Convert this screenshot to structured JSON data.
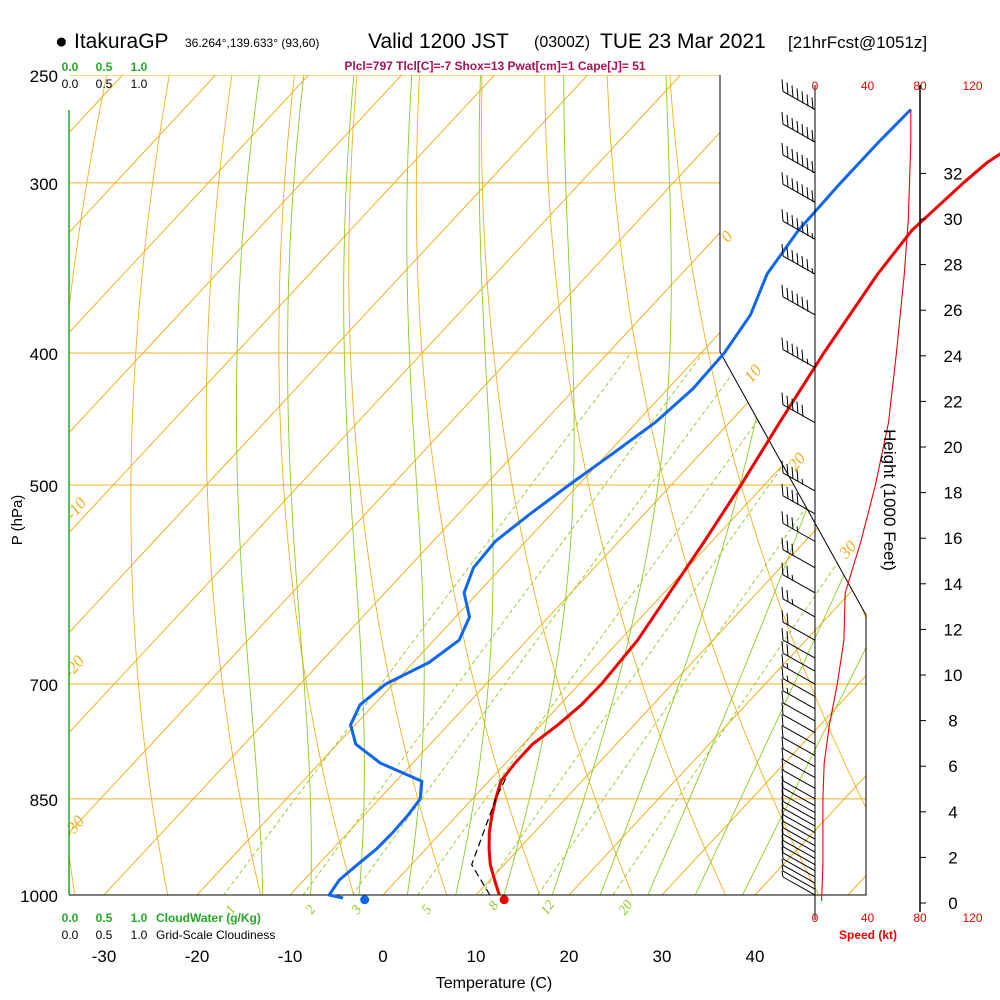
{
  "header": {
    "station": "ItakuraGP",
    "coords": "36.264°,139.633° (93,60)",
    "valid": "Valid 1200 JST",
    "utc": "(0300Z)",
    "date": "TUE 23 Mar 2021",
    "fcst": "[21hrFcst@1051z]"
  },
  "indices": "Plcl=797 Tlcl[C]=-7 Shox=13 Pwat[cm]=1 Cape[J]= 51",
  "chart_data": {
    "type": "line",
    "subtype": "skew-T log-P sounding",
    "xlabel": "Temperature (C)",
    "ylabel": "P (hPa)",
    "y2label": "Height (1000 Feet)",
    "x_ticks": [
      -30,
      -20,
      -10,
      0,
      10,
      20,
      30,
      40
    ],
    "p_ticks": [
      250,
      300,
      400,
      500,
      700,
      850,
      1000
    ],
    "height_ticks": [
      0,
      2,
      4,
      6,
      8,
      10,
      12,
      14,
      16,
      18,
      20,
      22,
      24,
      26,
      28,
      30,
      32
    ],
    "isotherm_labels": [
      -30,
      -20,
      -10,
      0,
      10,
      20,
      30
    ],
    "mixing_ratio_labels": [
      "1",
      "2",
      "3",
      "5",
      "8",
      "12",
      "20"
    ],
    "cloudwater_axis": {
      "label": "CloudWater (g/Kg)",
      "ticks": [
        "0.0",
        "0.5",
        "1.0"
      ],
      "color": "#22aa22"
    },
    "cloudiness_axis": {
      "label": "Grid-Scale Cloudiness",
      "ticks": [
        "0.0",
        "0.5",
        "1.0"
      ]
    },
    "speed_axis": {
      "label": "Speed (kt)",
      "ticks": [
        "0",
        "40",
        "80",
        "120"
      ],
      "color": "#ee0000"
    },
    "temperature": {
      "color": "#ee0000",
      "points": [
        [
          12.5,
          1000
        ],
        [
          10.5,
          975
        ],
        [
          8.5,
          950
        ],
        [
          6.8,
          925
        ],
        [
          5.2,
          900
        ],
        [
          3.8,
          875
        ],
        [
          2.5,
          850
        ],
        [
          1.3,
          825
        ],
        [
          1.0,
          800
        ],
        [
          1.0,
          775
        ],
        [
          1.8,
          750
        ],
        [
          2.3,
          725
        ],
        [
          2.4,
          700
        ],
        [
          1.9,
          650
        ],
        [
          0.6,
          600
        ],
        [
          -0.8,
          550
        ],
        [
          -2.5,
          500
        ],
        [
          -4.6,
          450
        ],
        [
          -6.8,
          400
        ],
        [
          -8.9,
          350
        ],
        [
          -9.6,
          325
        ],
        [
          -8.8,
          300
        ],
        [
          -8.3,
          290
        ],
        [
          -7.0,
          280
        ],
        [
          -6.0,
          270
        ],
        [
          -5.5,
          265
        ]
      ]
    },
    "dewpoint": {
      "color": "#1166ee",
      "points": [
        [
          -4.0,
          1005
        ],
        [
          -5.8,
          1000
        ],
        [
          -6.2,
          975
        ],
        [
          -5.8,
          950
        ],
        [
          -5.3,
          925
        ],
        [
          -5.2,
          900
        ],
        [
          -5.3,
          875
        ],
        [
          -5.6,
          850
        ],
        [
          -7.2,
          825
        ],
        [
          -13.5,
          800
        ],
        [
          -18.0,
          775
        ],
        [
          -20.5,
          750
        ],
        [
          -21.5,
          725
        ],
        [
          -20.8,
          700
        ],
        [
          -18.3,
          675
        ],
        [
          -17.3,
          650
        ],
        [
          -18.5,
          625
        ],
        [
          -21.5,
          600
        ],
        [
          -23.0,
          575
        ],
        [
          -23.3,
          550
        ],
        [
          -22.3,
          525
        ],
        [
          -21.0,
          500
        ],
        [
          -19.5,
          475
        ],
        [
          -18.0,
          450
        ],
        [
          -17.3,
          425
        ],
        [
          -17.5,
          400
        ],
        [
          -18.5,
          375
        ],
        [
          -20.8,
          350
        ],
        [
          -21.8,
          325
        ],
        [
          -22.0,
          300
        ],
        [
          -22.0,
          280
        ],
        [
          -21.8,
          265
        ]
      ]
    },
    "parcel": {
      "color": "#000000",
      "dash": true,
      "points": [
        [
          11.5,
          1000
        ],
        [
          6.5,
          950
        ],
        [
          2.5,
          850
        ],
        [
          1.5,
          820
        ]
      ]
    },
    "surface_temp": 13.5,
    "surface_dewpoint": -1.5,
    "wind_speed_profile": [
      [
        5,
        1010
      ],
      [
        6,
        950
      ],
      [
        6,
        850
      ],
      [
        7,
        800
      ],
      [
        11,
        750
      ],
      [
        17,
        700
      ],
      [
        22,
        650
      ],
      [
        23,
        600
      ],
      [
        35,
        550
      ],
      [
        46,
        500
      ],
      [
        56,
        450
      ],
      [
        62,
        400
      ],
      [
        68,
        350
      ],
      [
        71,
        320
      ],
      [
        72,
        300
      ],
      [
        73,
        280
      ],
      [
        73,
        265
      ]
    ],
    "wind_barbs": [
      {
        "p": 1000,
        "kt": 5
      },
      {
        "p": 990,
        "kt": 5
      },
      {
        "p": 980,
        "kt": 5
      },
      {
        "p": 970,
        "kt": 10
      },
      {
        "p": 960,
        "kt": 10
      },
      {
        "p": 950,
        "kt": 10
      },
      {
        "p": 940,
        "kt": 10
      },
      {
        "p": 930,
        "kt": 10
      },
      {
        "p": 920,
        "kt": 10
      },
      {
        "p": 910,
        "kt": 10
      },
      {
        "p": 900,
        "kt": 10
      },
      {
        "p": 890,
        "kt": 10
      },
      {
        "p": 880,
        "kt": 10
      },
      {
        "p": 870,
        "kt": 10
      },
      {
        "p": 860,
        "kt": 10
      },
      {
        "p": 850,
        "kt": 10
      },
      {
        "p": 835,
        "kt": 10
      },
      {
        "p": 820,
        "kt": 10
      },
      {
        "p": 805,
        "kt": 10
      },
      {
        "p": 790,
        "kt": 10
      },
      {
        "p": 775,
        "kt": 10
      },
      {
        "p": 760,
        "kt": 10
      },
      {
        "p": 745,
        "kt": 10
      },
      {
        "p": 730,
        "kt": 15
      },
      {
        "p": 715,
        "kt": 15
      },
      {
        "p": 700,
        "kt": 15
      },
      {
        "p": 685,
        "kt": 20
      },
      {
        "p": 670,
        "kt": 20
      },
      {
        "p": 650,
        "kt": 20
      },
      {
        "p": 625,
        "kt": 25
      },
      {
        "p": 600,
        "kt": 25
      },
      {
        "p": 575,
        "kt": 30
      },
      {
        "p": 550,
        "kt": 35
      },
      {
        "p": 525,
        "kt": 40
      },
      {
        "p": 505,
        "kt": 45
      },
      {
        "p": 450,
        "kt": 50
      },
      {
        "p": 410,
        "kt": 55
      },
      {
        "p": 375,
        "kt": 60
      },
      {
        "p": 350,
        "kt": 65
      },
      {
        "p": 330,
        "kt": 65
      },
      {
        "p": 310,
        "kt": 70
      },
      {
        "p": 295,
        "kt": 70
      },
      {
        "p": 280,
        "kt": 70
      },
      {
        "p": 265,
        "kt": 70
      }
    ]
  }
}
